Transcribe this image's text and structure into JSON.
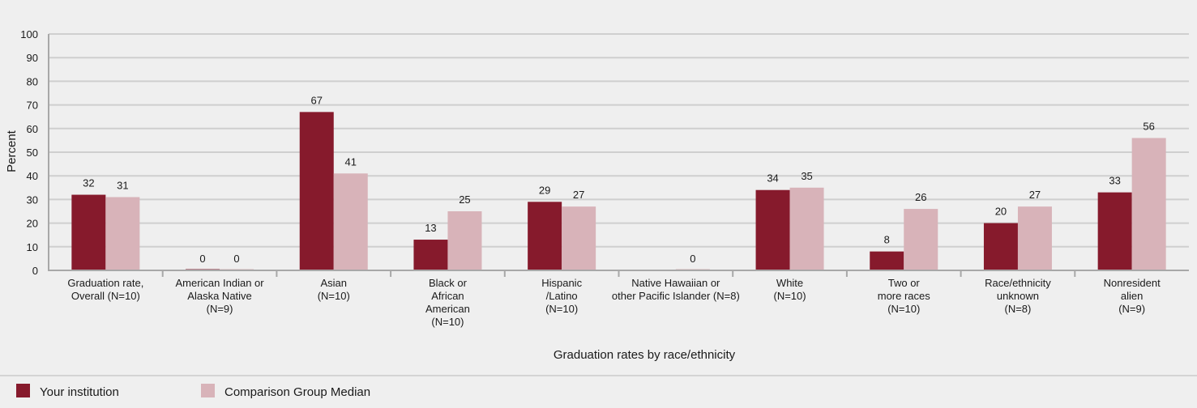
{
  "chart_data": {
    "type": "bar",
    "ylabel": "Percent",
    "xlabel": "Graduation rates by race/ethnicity",
    "ylim": [
      0,
      100
    ],
    "yticks": [
      0,
      10,
      20,
      30,
      40,
      50,
      60,
      70,
      80,
      90,
      100
    ],
    "grid": true,
    "legend_position": "bottom-left",
    "categories": [
      [
        "Graduation rate,",
        "Overall (N=10)"
      ],
      [
        "American Indian or",
        "Alaska Native",
        "(N=9)"
      ],
      [
        "Asian",
        "(N=10)"
      ],
      [
        "Black or",
        "African",
        "American",
        "(N=10)"
      ],
      [
        "Hispanic",
        "/Latino",
        "(N=10)"
      ],
      [
        "Native Hawaiian or",
        "other Pacific Islander (N=8)"
      ],
      [
        "White",
        "(N=10)"
      ],
      [
        "Two or",
        "more races",
        "(N=10)"
      ],
      [
        "Race/ethnicity",
        "unknown",
        "(N=8)"
      ],
      [
        "Nonresident",
        "alien",
        "(N=9)"
      ]
    ],
    "series": [
      {
        "name": "Your institution",
        "color": "#861a2c",
        "values": [
          32,
          0,
          67,
          13,
          29,
          null,
          34,
          8,
          20,
          33
        ]
      },
      {
        "name": "Comparison Group Median",
        "color": "#d8b3b9",
        "values": [
          31,
          0,
          41,
          25,
          27,
          0,
          35,
          26,
          27,
          56
        ]
      }
    ]
  }
}
